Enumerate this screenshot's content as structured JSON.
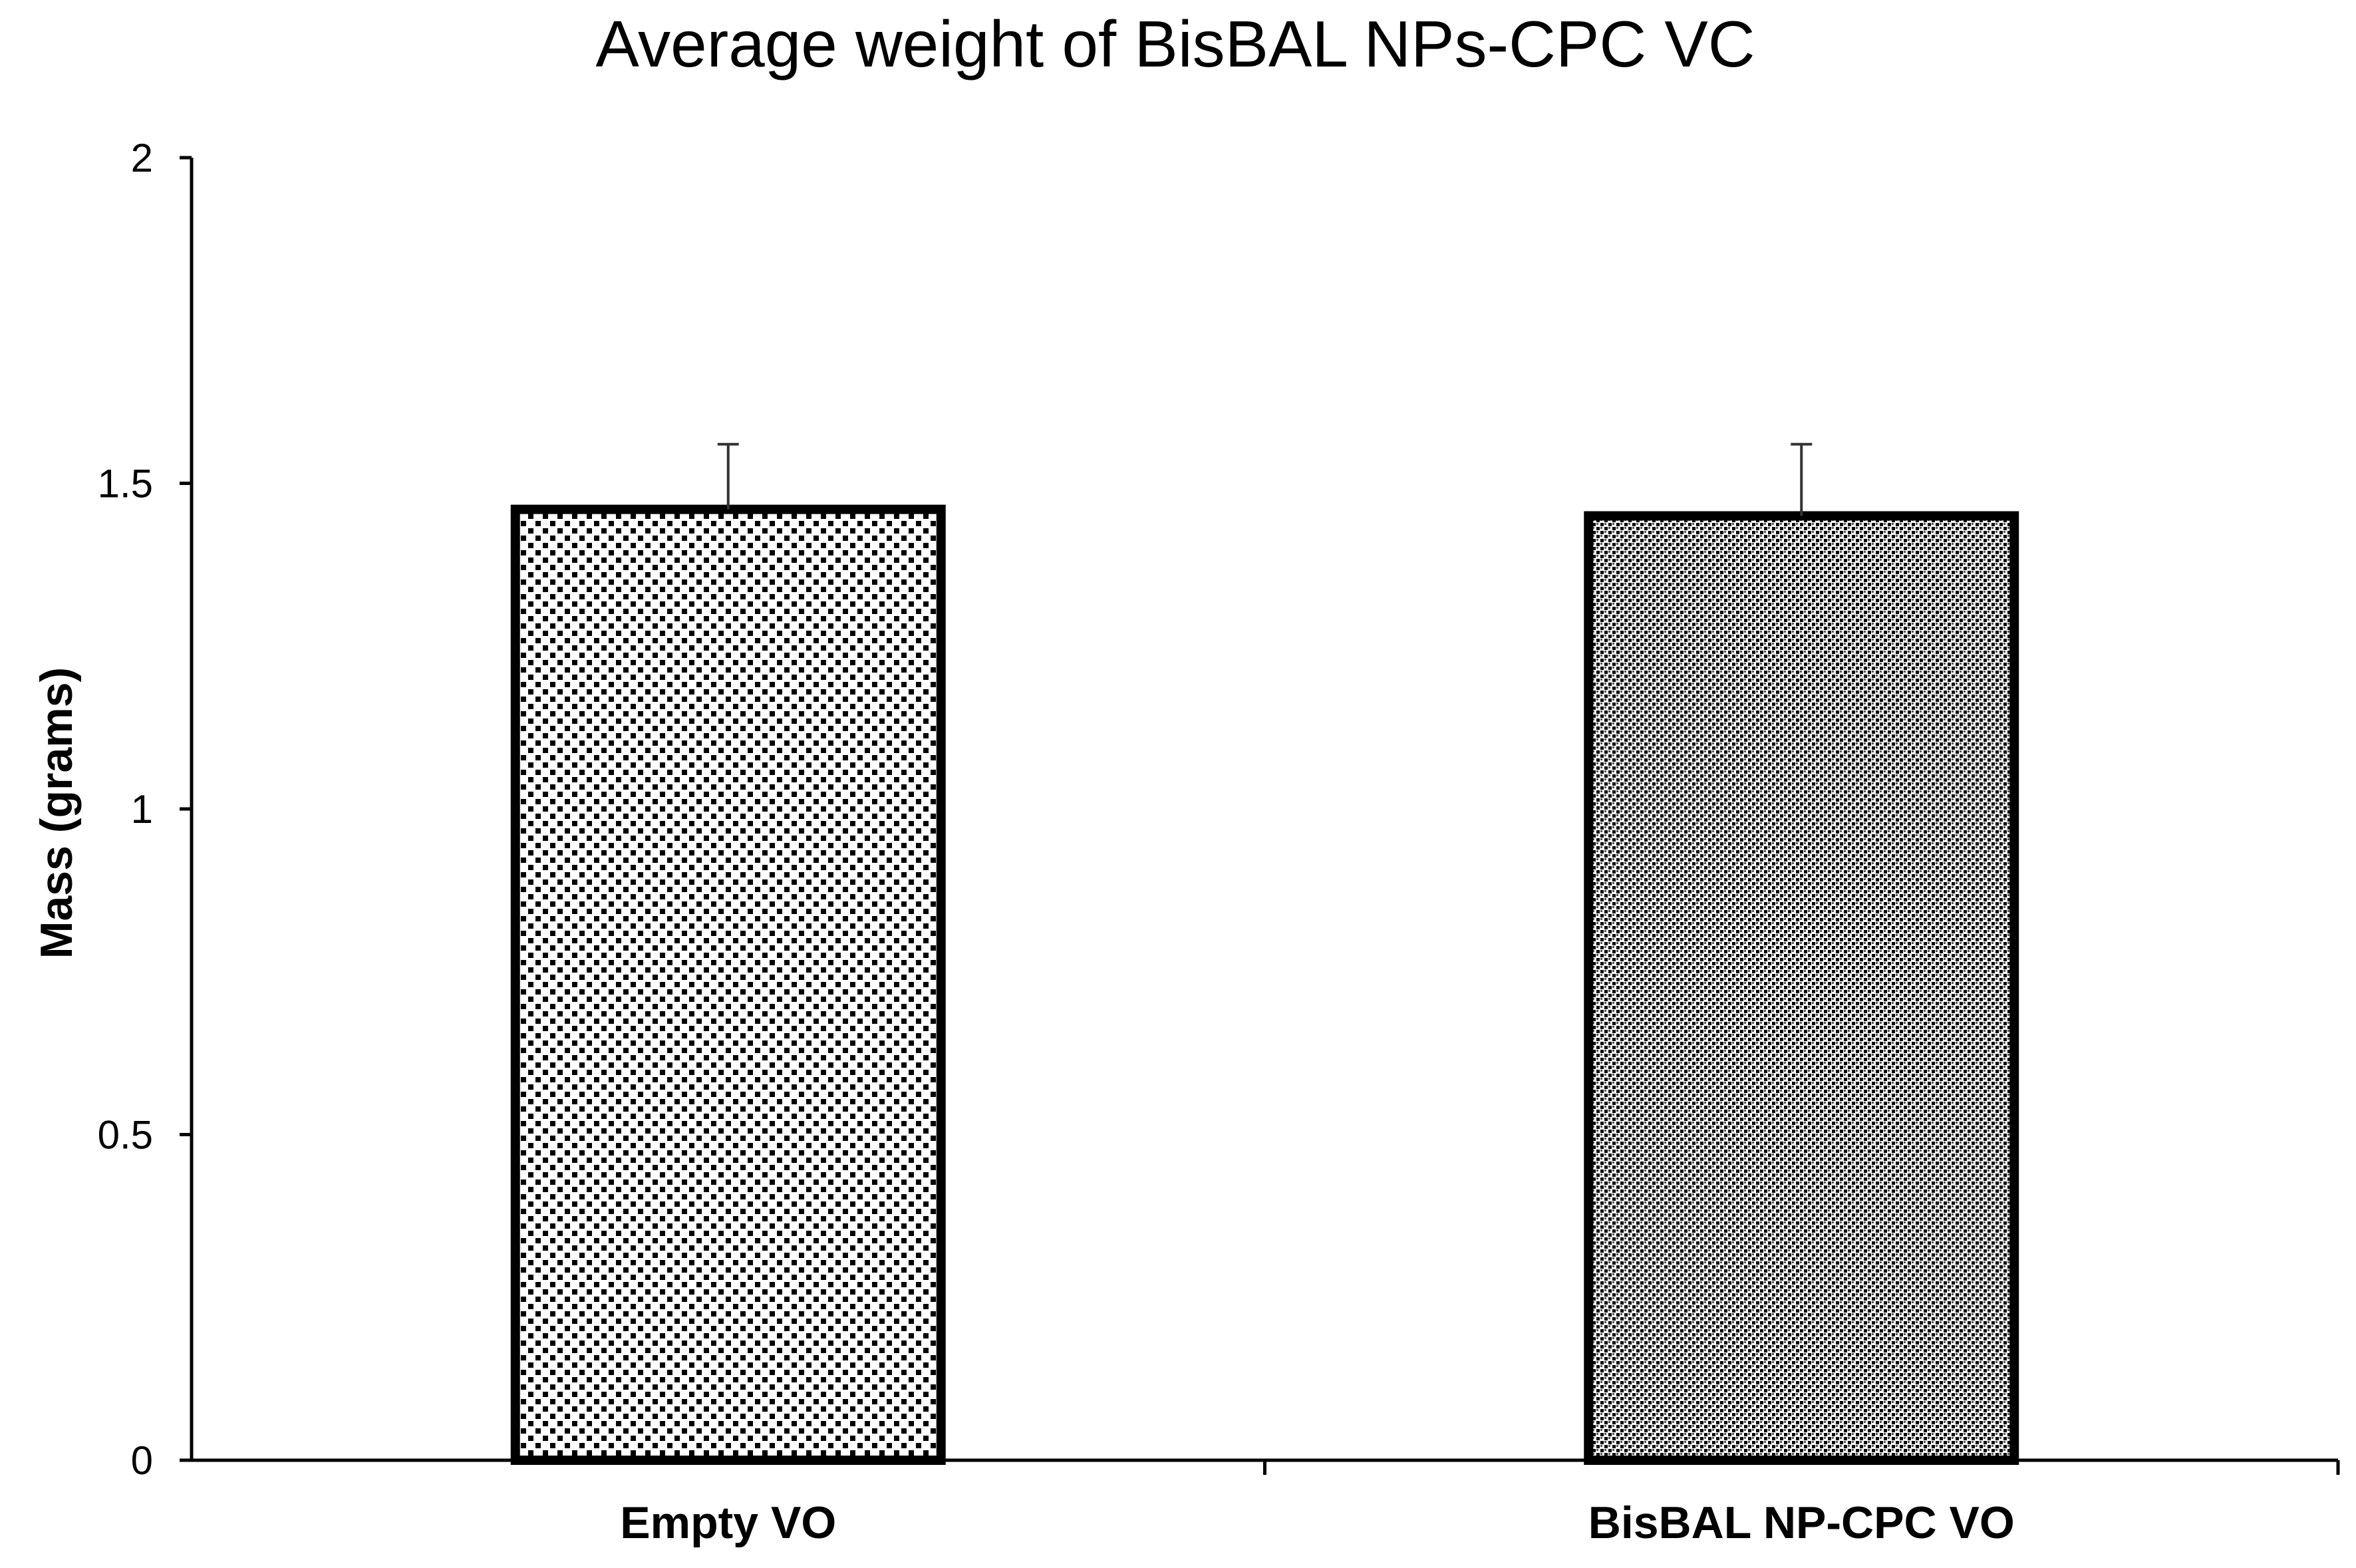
{
  "chart_data": {
    "type": "bar",
    "title": "Average weight of BisBAL NPs-CPC VC",
    "xlabel": "",
    "ylabel": "Mass (grams)",
    "categories": [
      "Empty VO",
      "BisBAL NP-CPC VO"
    ],
    "values": [
      1.46,
      1.45
    ],
    "errors": [
      0.1,
      0.11
    ],
    "ylim": [
      0,
      2
    ],
    "yticks": [
      0,
      0.5,
      1,
      1.5,
      2
    ],
    "ytick_labels": [
      "0",
      "0.5",
      "1",
      "1.5",
      "2"
    ],
    "grid": false,
    "legend": "none",
    "bar_patterns": [
      "sparse-dots",
      "dense-dots"
    ],
    "colors": {
      "bar_outline": "#000000",
      "axis": "#000000",
      "pattern_ink": "#000000",
      "background": "#ffffff"
    }
  }
}
